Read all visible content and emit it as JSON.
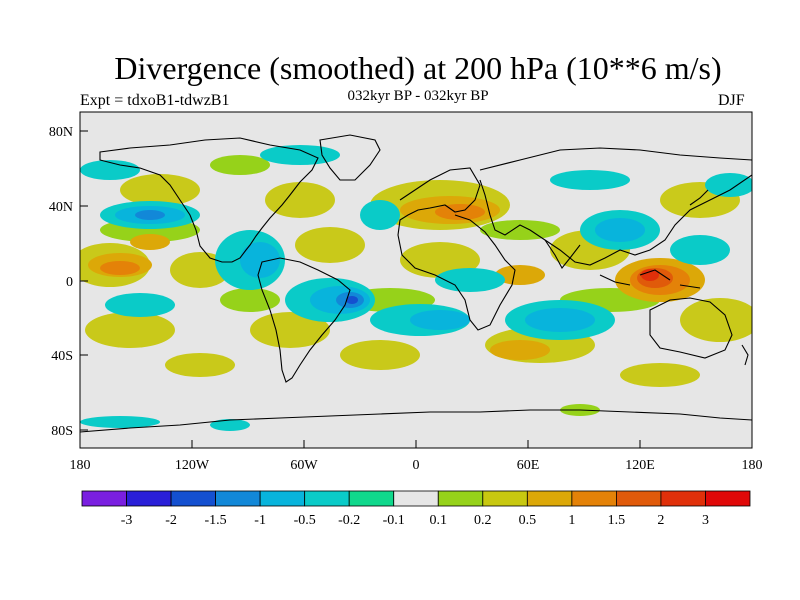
{
  "title": "Divergence (smoothed) at 200 hPa (10**6 m/s)",
  "experiment_label": "Expt = tdxoB1-tdwzB1",
  "subtitle": "032kyr BP - 032kyr BP",
  "season": "DJF",
  "y_ticks": [
    "80N",
    "40N",
    "0",
    "40S",
    "80S"
  ],
  "x_ticks": [
    "180",
    "120W",
    "60W",
    "0",
    "60E",
    "120E",
    "180"
  ],
  "colorbar": {
    "labels": [
      "-3",
      "-2",
      "-1.5",
      "-1",
      "-0.5",
      "-0.2",
      "-0.1",
      "0.1",
      "0.2",
      "0.5",
      "1",
      "1.5",
      "2",
      "3"
    ],
    "colors": [
      "#7a1fe0",
      "#2a1fd8",
      "#1450d0",
      "#1288d8",
      "#08b4dc",
      "#0acbc8",
      "#10d88c",
      "#e6e6e6",
      "#96d21a",
      "#c8c810",
      "#dca808",
      "#e48208",
      "#e05a0a",
      "#e0300a",
      "#e00808"
    ]
  },
  "map": {
    "background": "#e6e6e6",
    "coastline": "#000000"
  }
}
